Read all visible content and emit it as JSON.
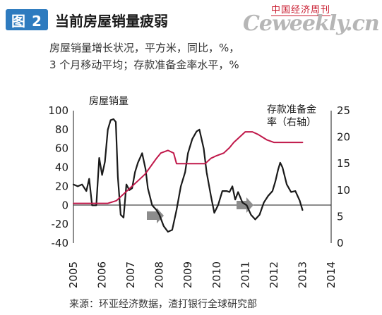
{
  "header": {
    "badge": "图 2",
    "title": "当前房屋销量疲弱",
    "masthead_cn": "中国经济周刊",
    "masthead_en": "Ceweekly.cn"
  },
  "subtitle": {
    "line1": "房屋销量增长状况，平方米，同比，%，",
    "line2": "3 个月移动平均；存款准备金率水平，%"
  },
  "source": "来源：环亚经济数据，渣打银行全球研究部",
  "chart_data": {
    "type": "line",
    "left_axis_label": "房屋销量",
    "right_axis_label_line1": "存款准备金",
    "right_axis_label_line2": "率（右轴）",
    "left_ticks": [
      "100",
      "80",
      "60",
      "40",
      "20",
      "0",
      "-20",
      "-40"
    ],
    "right_ticks": [
      "25",
      "20",
      "15",
      "10",
      "5",
      "0"
    ],
    "x_ticks": [
      "2005",
      "2006",
      "2007",
      "2008",
      "2009",
      "2010",
      "2011",
      "2012",
      "2013",
      "2014"
    ],
    "ylim_left": [
      -40,
      100
    ],
    "ylim_right": [
      0,
      25
    ],
    "grid": false,
    "series": [
      {
        "name": "房屋销量",
        "axis": "left",
        "color": "#1a1a1a",
        "points": [
          [
            2005.0,
            22
          ],
          [
            2005.15,
            20
          ],
          [
            2005.3,
            22
          ],
          [
            2005.45,
            15
          ],
          [
            2005.55,
            28
          ],
          [
            2005.65,
            0
          ],
          [
            2005.8,
            0
          ],
          [
            2005.9,
            50
          ],
          [
            2006.0,
            32
          ],
          [
            2006.1,
            46
          ],
          [
            2006.2,
            80
          ],
          [
            2006.3,
            90
          ],
          [
            2006.4,
            91
          ],
          [
            2006.48,
            88
          ],
          [
            2006.55,
            30
          ],
          [
            2006.65,
            -10
          ],
          [
            2006.75,
            -13
          ],
          [
            2006.85,
            22
          ],
          [
            2006.95,
            16
          ],
          [
            2007.05,
            18
          ],
          [
            2007.15,
            35
          ],
          [
            2007.25,
            45
          ],
          [
            2007.4,
            55
          ],
          [
            2007.52,
            38
          ],
          [
            2007.6,
            18
          ],
          [
            2007.75,
            0
          ],
          [
            2007.9,
            -5
          ],
          [
            2008.0,
            -10
          ],
          [
            2008.15,
            -22
          ],
          [
            2008.3,
            -28
          ],
          [
            2008.45,
            -26
          ],
          [
            2008.6,
            -5
          ],
          [
            2008.75,
            20
          ],
          [
            2008.9,
            35
          ],
          [
            2009.0,
            55
          ],
          [
            2009.15,
            70
          ],
          [
            2009.3,
            78
          ],
          [
            2009.4,
            80
          ],
          [
            2009.55,
            60
          ],
          [
            2009.65,
            35
          ],
          [
            2009.8,
            10
          ],
          [
            2009.92,
            -8
          ],
          [
            2010.05,
            0
          ],
          [
            2010.2,
            15
          ],
          [
            2010.35,
            15
          ],
          [
            2010.45,
            14
          ],
          [
            2010.55,
            20
          ],
          [
            2010.65,
            6
          ],
          [
            2010.75,
            14
          ],
          [
            2010.9,
            3
          ],
          [
            2011.05,
            0
          ],
          [
            2011.2,
            -10
          ],
          [
            2011.35,
            -15
          ],
          [
            2011.5,
            -10
          ],
          [
            2011.65,
            3
          ],
          [
            2011.8,
            10
          ],
          [
            2011.95,
            15
          ],
          [
            2012.05,
            25
          ],
          [
            2012.15,
            38
          ],
          [
            2012.22,
            45
          ],
          [
            2012.3,
            40
          ],
          [
            2012.45,
            22
          ],
          [
            2012.6,
            14
          ],
          [
            2012.75,
            15
          ],
          [
            2012.9,
            5
          ],
          [
            2013.0,
            -5
          ]
        ]
      },
      {
        "name": "存款准备金率",
        "axis": "right",
        "color": "#c0184a",
        "points": [
          [
            2005.0,
            7.5
          ],
          [
            2006.2,
            7.5
          ],
          [
            2006.5,
            8.0
          ],
          [
            2006.7,
            9.0
          ],
          [
            2006.9,
            10.0
          ],
          [
            2007.1,
            11.0
          ],
          [
            2007.3,
            12.0
          ],
          [
            2007.5,
            13.0
          ],
          [
            2007.7,
            14.5
          ],
          [
            2007.9,
            16.0
          ],
          [
            2008.05,
            17.0
          ],
          [
            2008.3,
            17.5
          ],
          [
            2008.5,
            17.0
          ],
          [
            2008.6,
            15.0
          ],
          [
            2009.6,
            15.0
          ],
          [
            2009.8,
            16.0
          ],
          [
            2010.0,
            16.5
          ],
          [
            2010.25,
            17.0
          ],
          [
            2010.45,
            18.0
          ],
          [
            2010.6,
            19.0
          ],
          [
            2010.8,
            20.0
          ],
          [
            2011.0,
            21.0
          ],
          [
            2011.25,
            21.0
          ],
          [
            2011.45,
            20.5
          ],
          [
            2011.6,
            20.0
          ],
          [
            2011.75,
            19.5
          ],
          [
            2012.0,
            19.0
          ],
          [
            2013.0,
            19.0
          ]
        ]
      }
    ]
  }
}
